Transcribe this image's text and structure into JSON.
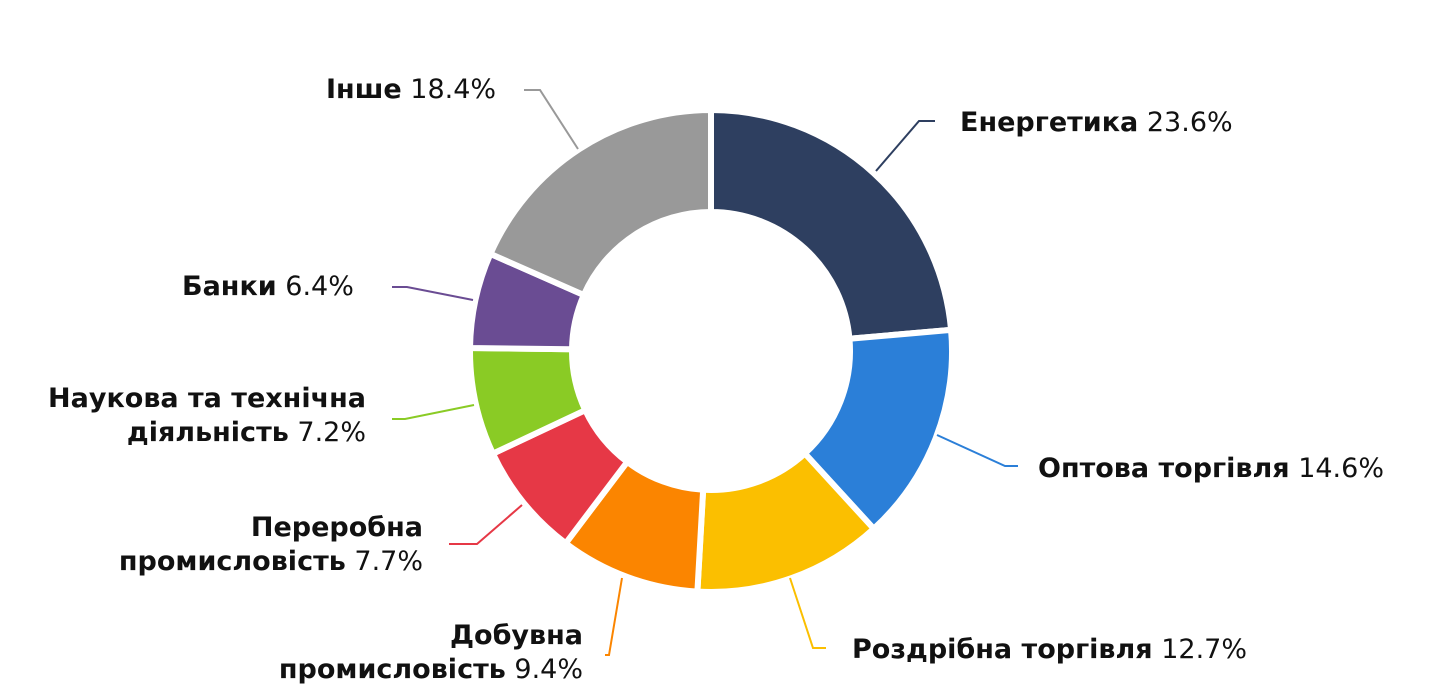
{
  "chart_data": {
    "type": "pie",
    "variant": "donut",
    "start": "12 o'clock",
    "direction": "clockwise",
    "legend": "none",
    "slices": [
      {
        "name": "Енергетика",
        "value": 23.6,
        "label": "23.6%",
        "color": "#2e3f60"
      },
      {
        "name": "Оптова торгівля",
        "value": 14.6,
        "label": "14.6%",
        "color": "#2b7fd8"
      },
      {
        "name": "Роздрібна торгівля",
        "value": 12.7,
        "label": "12.7%",
        "color": "#fbbf00"
      },
      {
        "name": "Добувна промисловість",
        "value": 9.4,
        "label": "9.4%",
        "color": "#fb8500"
      },
      {
        "name": "Переробна промисловість",
        "value": 7.7,
        "label": "7.7%",
        "color": "#e63846"
      },
      {
        "name": "Наукова та технічна діяльність",
        "value": 7.2,
        "label": "7.2%",
        "color": "#8acb25"
      },
      {
        "name": "Банки",
        "value": 6.4,
        "label": "6.4%",
        "color": "#6a4c93"
      },
      {
        "name": "Інше",
        "value": 18.4,
        "label": "18.4%",
        "color": "#999999"
      }
    ]
  }
}
